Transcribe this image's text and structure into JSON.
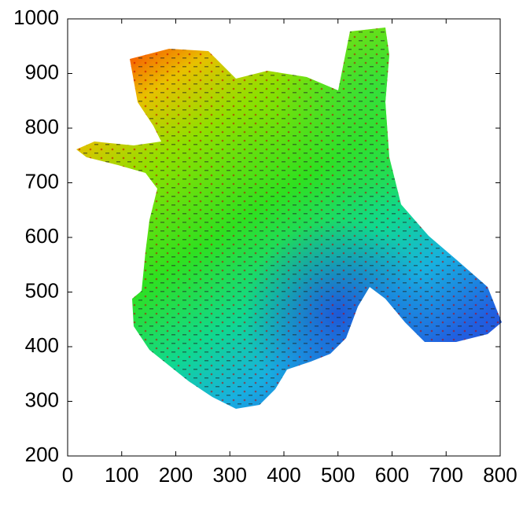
{
  "chart_data": {
    "type": "map",
    "xlim": [
      0,
      800
    ],
    "ylim": [
      200,
      1000
    ],
    "xticks": [
      0,
      100,
      200,
      300,
      400,
      500,
      600,
      700,
      800
    ],
    "yticks": [
      200,
      300,
      400,
      500,
      600,
      700,
      800,
      900,
      1000
    ]
  }
}
